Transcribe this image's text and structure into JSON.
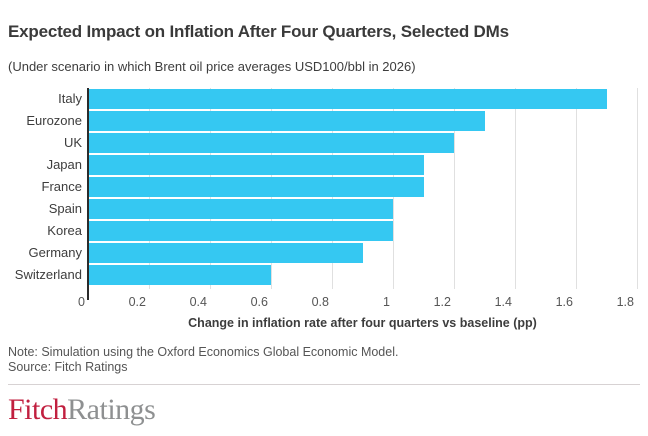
{
  "header": {
    "title": "Expected Impact on Inflation After Four Quarters, Selected DMs",
    "subtitle": "(Under scenario in which Brent oil price averages USD100/bbl in 2026)"
  },
  "chart_data": {
    "type": "bar",
    "orientation": "horizontal",
    "categories": [
      "Italy",
      "Eurozone",
      "UK",
      "Japan",
      "France",
      "Spain",
      "Korea",
      "Germany",
      "Switzerland"
    ],
    "values": [
      1.7,
      1.3,
      1.2,
      1.1,
      1.1,
      1.0,
      1.0,
      0.9,
      0.6
    ],
    "xlabel": "Change in inflation rate after four quarters vs baseline (pp)",
    "xlim": [
      0,
      1.8
    ],
    "xticks": [
      0,
      0.2,
      0.4,
      0.6,
      0.8,
      1,
      1.2,
      1.4,
      1.6,
      1.8
    ],
    "xtick_labels": [
      "0",
      "0.2",
      "0.4",
      "0.6",
      "0.8",
      "1",
      "1.2",
      "1.4",
      "1.6",
      "1.8"
    ],
    "grid": "vertical",
    "legend": "none",
    "bar_color": "#35c8f2",
    "gridline_color": "#e0e0e0",
    "axis_line_color": "#2b2b2b"
  },
  "footer": {
    "note": "Note: Simulation using the Oxford Economics Global Economic Model.",
    "source": "Source: Fitch Ratings"
  },
  "logo": {
    "fitch": "Fitch",
    "ratings": "Ratings",
    "fitch_color": "#c11f3f",
    "ratings_color": "#8e9091"
  }
}
